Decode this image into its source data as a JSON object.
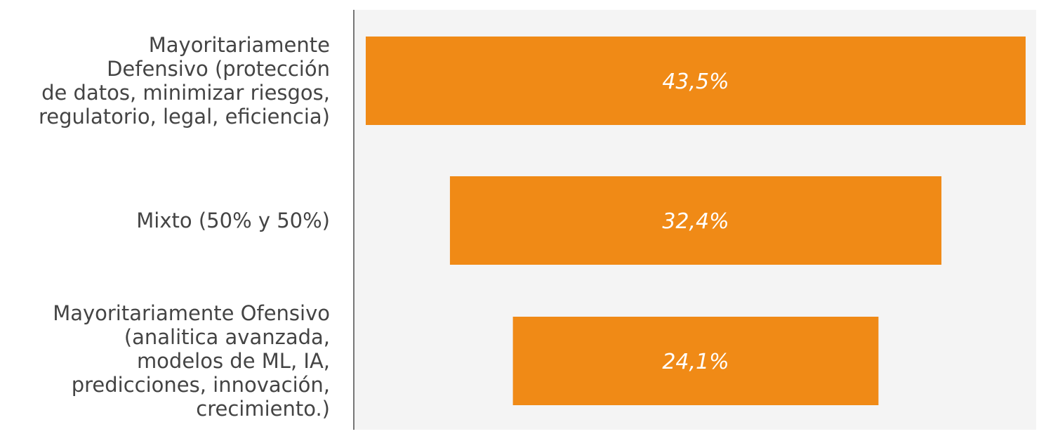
{
  "colors": {
    "bar": "#f08a16",
    "plot_background": "#f4f4f4",
    "axis_line": "#777777",
    "category_text": "#444444",
    "value_text": "#ffffff"
  },
  "chart_data": {
    "type": "bar",
    "orientation": "horizontal",
    "alignment": "centered",
    "categories": [
      "Mayoritariamente Defensivo (protección de datos, minimizar riesgos, regulatorio, legal, eficiencia)",
      "Mixto (50% y 50%)",
      "Mayoritariamente Ofensivo (analitica avanzada, modelos de ML, IA, predicciones, innovación, crecimiento.)"
    ],
    "category_lines": [
      [
        "Mayoritariamente",
        "Defensivo (protección",
        "de datos, minimizar riesgos,",
        "regulatorio, legal, eficiencia)"
      ],
      [
        "Mixto (50% y 50%)"
      ],
      [
        "Mayoritariamente Ofensivo",
        "(analitica avanzada,",
        "modelos de ML, IA,",
        "predicciones, innovación,",
        "crecimiento.)"
      ]
    ],
    "values": [
      43.5,
      32.4,
      24.1
    ],
    "value_labels": [
      "43,5%",
      "32,4%",
      "24,1%"
    ],
    "unit": "%",
    "xlim": [
      0,
      43.5
    ],
    "grid": false,
    "legend": "none"
  }
}
